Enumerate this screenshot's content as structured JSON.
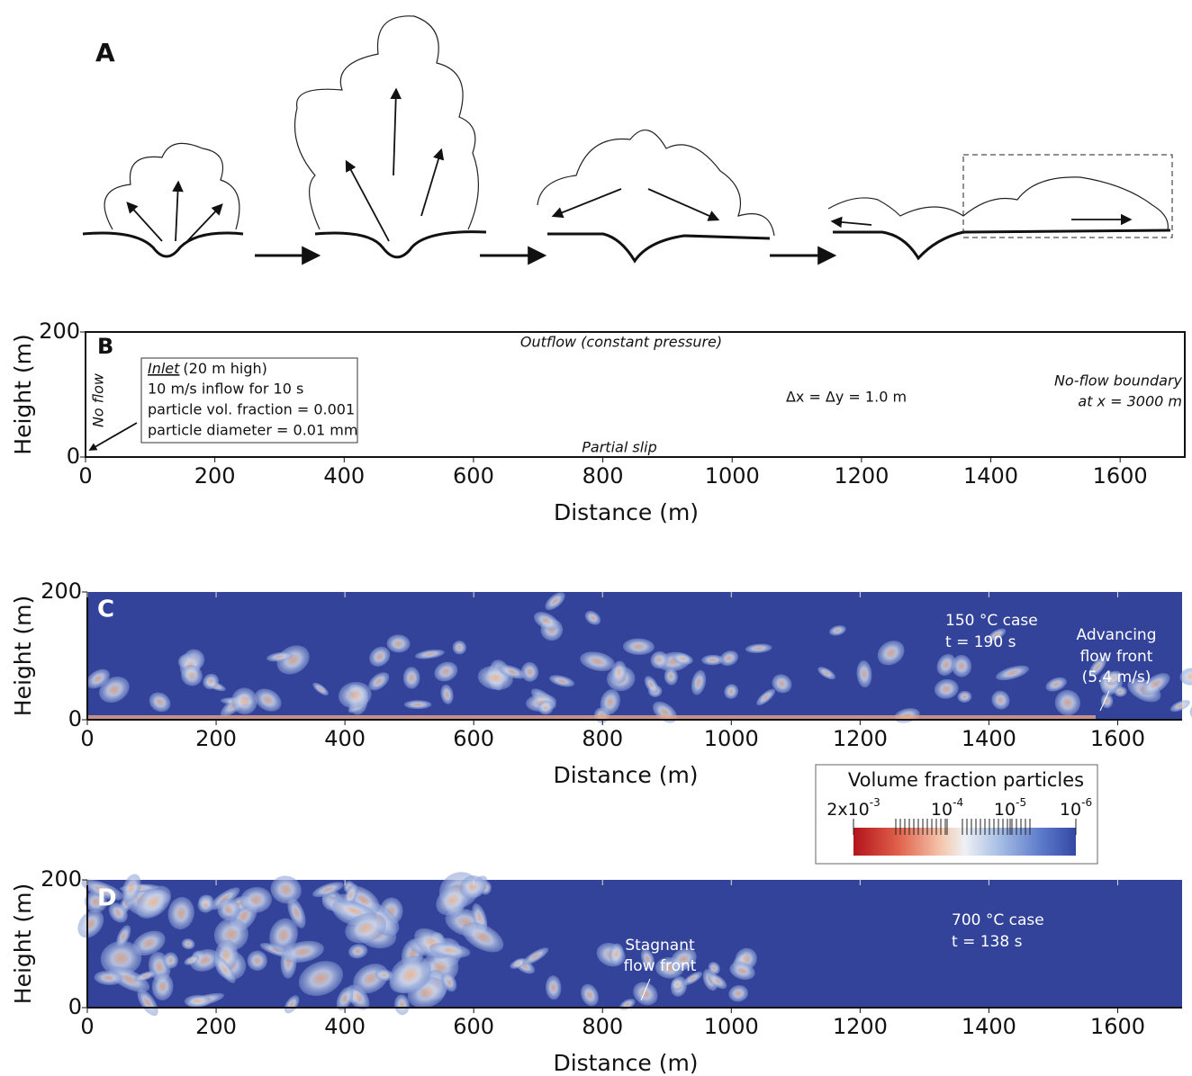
{
  "panel_a": {
    "label": "A"
  },
  "panel_b": {
    "label": "B",
    "x_axis_label": "Distance (m)",
    "y_axis_label": "Height (m)",
    "xlim": [
      0,
      1700
    ],
    "ylim": [
      0,
      200
    ],
    "xticks": [
      0,
      200,
      400,
      600,
      800,
      1000,
      1200,
      1400,
      1600
    ],
    "yticks": [
      0,
      200
    ],
    "annotations": {
      "outflow": "Outflow (constant pressure)",
      "no_flow": "No flow",
      "inlet": "Inlet",
      "inlet_note": "(20 m high)",
      "inflow": "10 m/s inflow for 10 s",
      "fraction": "particle vol. fraction = 0.001",
      "diameter": "particle diameter = 0.01 mm",
      "grid": "Δx = Δy = 1.0 m",
      "boundary1": "No-flow boundary",
      "boundary2": "at x = 3000 m",
      "slip": "Partial slip"
    }
  },
  "panel_c": {
    "label": "C",
    "x_axis_label": "Distance (m)",
    "y_axis_label": "Height (m)",
    "xlim": [
      0,
      1700
    ],
    "ylim": [
      0,
      200
    ],
    "xticks": [
      0,
      200,
      400,
      600,
      800,
      1000,
      1200,
      1400,
      1600
    ],
    "yticks": [
      0,
      200
    ],
    "annotations": {
      "case": "150 °C case",
      "time": "t = 190 s",
      "front1": "Advancing",
      "front2": "flow front",
      "front3": "(5.4 m/s)"
    }
  },
  "colorbar": {
    "title": "Volume fraction particles",
    "ticks": [
      {
        "base": "2x10",
        "exp": "-3"
      },
      {
        "base": "10",
        "exp": "-4"
      },
      {
        "base": "10",
        "exp": "-5"
      },
      {
        "base": "10",
        "exp": "-6"
      }
    ]
  },
  "panel_d": {
    "label": "D",
    "x_axis_label": "Distance (m)",
    "y_axis_label": "Height (m)",
    "xlim": [
      0,
      1700
    ],
    "ylim": [
      0,
      200
    ],
    "xticks": [
      0,
      200,
      400,
      600,
      800,
      1000,
      1200,
      1400,
      1600
    ],
    "yticks": [
      0,
      200
    ],
    "annotations": {
      "case": "700 °C case",
      "time": "t = 138 s",
      "front1": "Stagnant",
      "front2": "flow front"
    }
  }
}
